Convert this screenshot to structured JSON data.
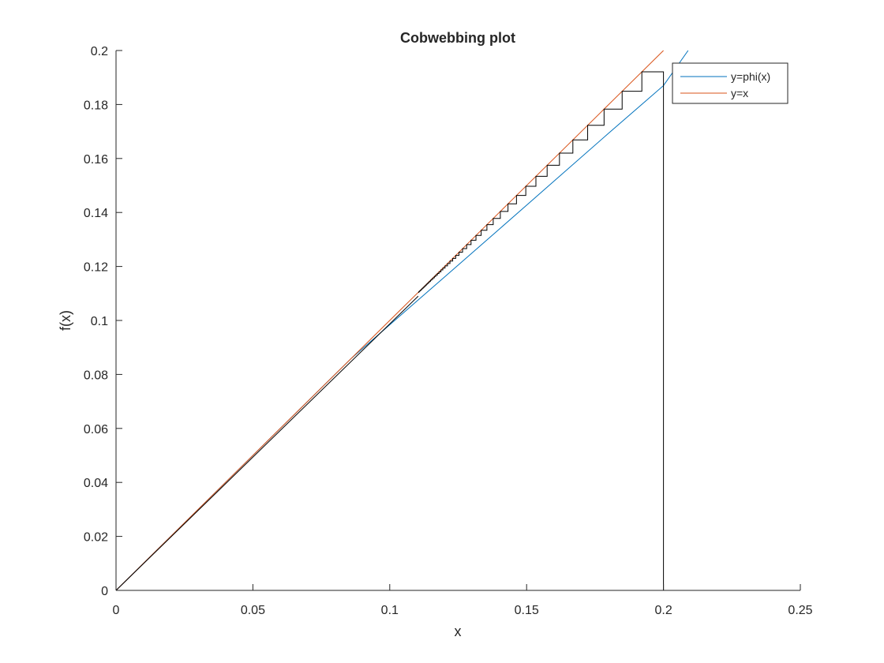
{
  "figure": {
    "background": "#ffffff"
  },
  "chart_data": {
    "type": "line",
    "title": "Cobwebbing plot",
    "xlabel": "x",
    "ylabel": "f(x)",
    "xlim": [
      0,
      0.25
    ],
    "ylim": [
      0,
      0.2
    ],
    "xticks": [
      0,
      0.05,
      0.1,
      0.15,
      0.2,
      0.25
    ],
    "xtick_labels": [
      "0",
      "0.05",
      "0.1",
      "0.15",
      "0.2",
      "0.25"
    ],
    "yticks": [
      0,
      0.02,
      0.04,
      0.06,
      0.08,
      0.1,
      0.12,
      0.14,
      0.16,
      0.18,
      0.2
    ],
    "ytick_labels": [
      "0",
      "0.02",
      "0.04",
      "0.06",
      "0.08",
      "0.1",
      "0.12",
      "0.14",
      "0.16",
      "0.18",
      "0.2"
    ],
    "grid": false,
    "box": false,
    "legend_position": "top-right",
    "series": [
      {
        "name": "y=phi(x)",
        "color": "#0072BD",
        "x": [
          0,
          0.0858,
          0.1,
          0.12,
          0.14,
          0.16,
          0.18,
          0.2,
          0.209
        ],
        "y": [
          0,
          0.0858,
          0.0984,
          0.1161,
          0.1338,
          0.1516,
          0.1694,
          0.187,
          0.2
        ]
      },
      {
        "name": "y=x",
        "color": "#D95319",
        "x": [
          0,
          0.2
        ],
        "y": [
          0,
          0.2
        ]
      }
    ],
    "cobweb": {
      "color": "#000000",
      "x0": 0.2,
      "iterates": [
        0.2,
        0.1921,
        0.1849,
        0.1783,
        0.1723,
        0.1669,
        0.162,
        0.1575,
        0.1534,
        0.1497,
        0.1463,
        0.1432,
        0.1404,
        0.1378,
        0.1355,
        0.1334,
        0.1315,
        0.1297,
        0.1281,
        0.1266,
        0.1253,
        0.1241,
        0.123,
        0.122,
        0.1211,
        0.1202,
        0.1194,
        0.1187,
        0.118,
        0.1174,
        0.1168,
        0.1163,
        0.1158,
        0.1153,
        0.1149,
        0.1145,
        0.1141,
        0.1137,
        0.1134,
        0.1131,
        0.1128,
        0.1125,
        0.1122,
        0.1119,
        0.1117,
        0.1114,
        0.1112,
        0.111,
        0.1108,
        0.1106,
        0.1104
      ],
      "tail_x": [
        0,
        0.1104
      ],
      "tail_y": [
        0,
        0.109
      ]
    }
  }
}
